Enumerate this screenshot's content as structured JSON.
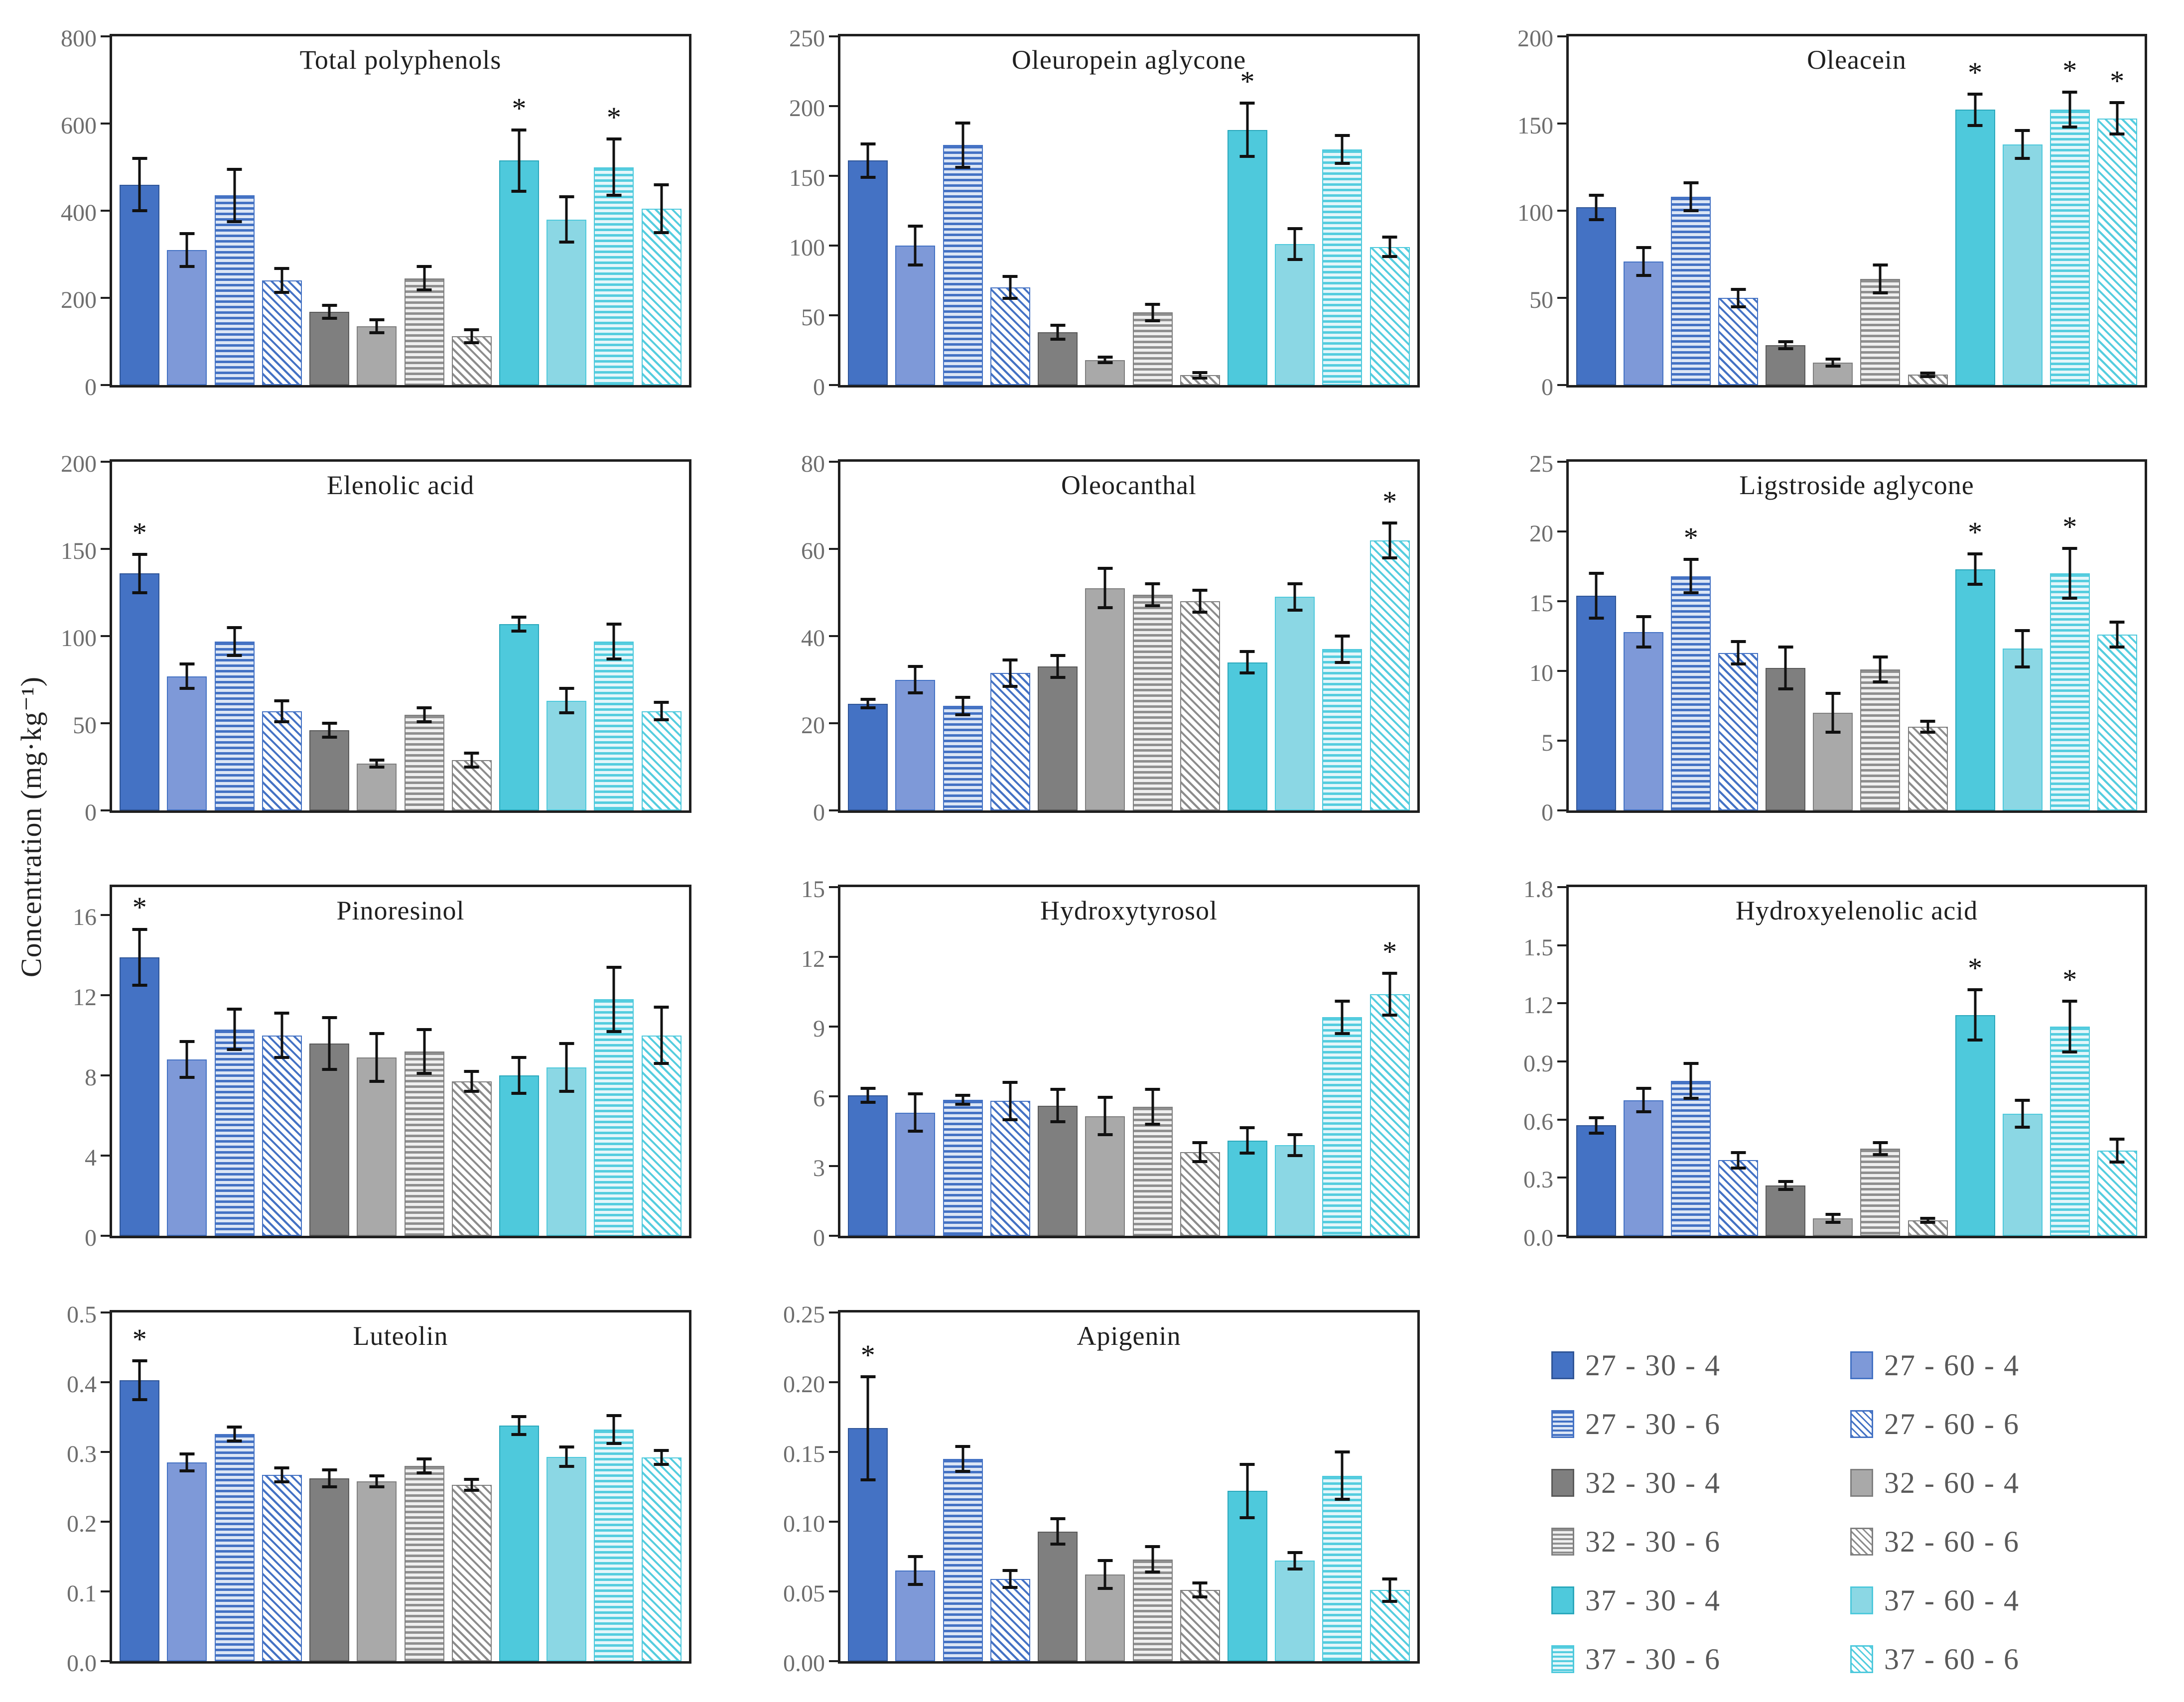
{
  "figure": {
    "type": "multi-panel bar figure",
    "panel_count": 11,
    "significance_marker": "*"
  },
  "series_styles": [
    {
      "label": "27 - 30 - 4",
      "pattern": "solid",
      "color": "#4472C4",
      "bg": "#4472C4",
      "edge": "#2F5597"
    },
    {
      "label": "27 - 60 - 4",
      "pattern": "solid",
      "color": "#7E99D8",
      "bg": "#7E99D8",
      "edge": "#4472C4"
    },
    {
      "label": "27 - 30 - 6",
      "pattern": "hstripe",
      "color": "#4472C4",
      "bg": "#DCE6F5",
      "edge": "#4472C4"
    },
    {
      "label": "27 - 60 - 6",
      "pattern": "diag",
      "color": "#4472C4",
      "bg": "#FFFFFF",
      "edge": "#4472C4"
    },
    {
      "label": "32 - 30 - 4",
      "pattern": "solid",
      "color": "#7F7F7F",
      "bg": "#7F7F7F",
      "edge": "#595959"
    },
    {
      "label": "32 - 60 - 4",
      "pattern": "solid",
      "color": "#A9A9A9",
      "bg": "#A9A9A9",
      "edge": "#7F7F7F"
    },
    {
      "label": "32 - 30 - 6",
      "pattern": "hstripe",
      "color": "#8F8F8F",
      "bg": "#EFEFEF",
      "edge": "#7F7F7F"
    },
    {
      "label": "32 - 60 - 6",
      "pattern": "diag",
      "color": "#8C8C8C",
      "bg": "#FFFFFF",
      "edge": "#7F7F7F"
    },
    {
      "label": "37 - 30 - 4",
      "pattern": "solid",
      "color": "#4EC9DC",
      "bg": "#4EC9DC",
      "edge": "#2AA8BC"
    },
    {
      "label": "37 - 60 - 4",
      "pattern": "solid",
      "color": "#8BD7E4",
      "bg": "#8BD7E4",
      "edge": "#4EC9DC"
    },
    {
      "label": "37 - 30 - 6",
      "pattern": "hstripe",
      "color": "#55CDDF",
      "bg": "#E5F6FA",
      "edge": "#4EC9DC"
    },
    {
      "label": "37 - 60 - 6",
      "pattern": "diag",
      "color": "#55CDDF",
      "bg": "#FFFFFF",
      "edge": "#4EC9DC"
    }
  ],
  "legend": {
    "columns": 2,
    "items": [
      "27 - 30 - 4",
      "27 - 60 - 4",
      "27 - 30 - 6",
      "27 - 60 - 6",
      "32 - 30 - 4",
      "32 - 60 - 4",
      "32 - 30 - 6",
      "32 - 60 - 6",
      "37 - 30 - 4",
      "37 - 60 - 4",
      "37 - 30 - 6",
      "37 - 60 - 6"
    ]
  },
  "chart_data": {
    "type": "bar",
    "ylabel": "Concentration (mg·kg⁻¹)",
    "categories": [
      "27 - 30 - 4",
      "27 - 60 - 4",
      "27 - 30 - 6",
      "27 - 60 - 6",
      "32 - 30 - 4",
      "32 - 60 - 4",
      "32 - 30 - 6",
      "32 - 60 - 6",
      "37 - 30 - 4",
      "37 - 60 - 4",
      "37 - 30 - 6",
      "37 - 60 - 6"
    ],
    "error_bars": true,
    "charts": [
      {
        "title": "Total polyphenols",
        "ylim": [
          0,
          800
        ],
        "yticks": [
          0,
          200,
          400,
          600,
          800
        ],
        "tick_decimals": 0,
        "values": [
          460,
          310,
          435,
          240,
          168,
          135,
          245,
          112,
          515,
          380,
          500,
          405
        ],
        "errors": [
          60,
          38,
          60,
          27,
          15,
          15,
          27,
          15,
          70,
          52,
          65,
          55
        ],
        "sig_indices": [
          8,
          10
        ]
      },
      {
        "title": "Oleuropein aglycone",
        "ylim": [
          0,
          250
        ],
        "yticks": [
          0,
          50,
          100,
          150,
          200,
          250
        ],
        "tick_decimals": 0,
        "values": [
          161,
          100,
          172,
          70,
          38,
          18,
          52,
          7,
          183,
          101,
          169,
          99
        ],
        "errors": [
          12,
          14,
          16,
          8,
          5,
          2,
          6,
          2,
          19,
          11,
          10,
          7
        ],
        "sig_indices": [
          8
        ]
      },
      {
        "title": "Oleacein",
        "ylim": [
          0,
          200
        ],
        "yticks": [
          0,
          50,
          100,
          150,
          200
        ],
        "tick_decimals": 0,
        "values": [
          102,
          71,
          108,
          50,
          23,
          13,
          61,
          6,
          158,
          138,
          158,
          153
        ],
        "errors": [
          7,
          8,
          8,
          5,
          2,
          2,
          8,
          1,
          9,
          8,
          10,
          9
        ],
        "sig_indices": [
          8,
          10,
          11
        ]
      },
      {
        "title": "Elenolic acid",
        "ylim": [
          0,
          200
        ],
        "yticks": [
          0,
          50,
          100,
          150,
          200
        ],
        "tick_decimals": 0,
        "values": [
          136,
          77,
          97,
          57,
          46,
          27,
          55,
          29,
          107,
          63,
          97,
          57
        ],
        "errors": [
          11,
          7,
          8,
          6,
          4,
          2,
          4,
          4,
          4,
          7,
          10,
          5
        ],
        "sig_indices": [
          0
        ]
      },
      {
        "title": "Oleocanthal",
        "ylim": [
          0,
          80
        ],
        "yticks": [
          0,
          20,
          40,
          60,
          80
        ],
        "tick_decimals": 0,
        "values": [
          24.5,
          30,
          24,
          31.5,
          33,
          51,
          49.5,
          48,
          34,
          49,
          37,
          62
        ],
        "errors": [
          1,
          3,
          2,
          3,
          2.5,
          4.5,
          2.5,
          2.5,
          2.5,
          3,
          3,
          4
        ],
        "sig_indices": [
          11
        ]
      },
      {
        "title": "Ligstroside aglycone",
        "ylim": [
          0,
          25
        ],
        "yticks": [
          0,
          5,
          10,
          15,
          20,
          25
        ],
        "tick_decimals": 0,
        "values": [
          15.4,
          12.8,
          16.8,
          11.3,
          10.2,
          7,
          10.1,
          6,
          17.3,
          11.6,
          17,
          12.6
        ],
        "errors": [
          1.6,
          1.1,
          1.2,
          0.8,
          1.5,
          1.4,
          0.9,
          0.4,
          1.1,
          1.3,
          1.8,
          0.9
        ],
        "sig_indices": [
          2,
          8,
          10
        ]
      },
      {
        "title": "Pinoresinol",
        "ylim": [
          0,
          17.4
        ],
        "yticks": [
          0,
          4,
          8,
          12,
          16
        ],
        "tick_decimals": 0,
        "values": [
          13.9,
          8.8,
          10.3,
          10,
          9.6,
          8.9,
          9.2,
          7.7,
          8,
          8.4,
          11.8,
          10
        ],
        "errors": [
          1.4,
          0.9,
          1,
          1.1,
          1.3,
          1.2,
          1.1,
          0.5,
          0.9,
          1.2,
          1.6,
          1.4
        ],
        "sig_indices": [
          0
        ]
      },
      {
        "title": "Hydroxytyrosol",
        "ylim": [
          0,
          15
        ],
        "yticks": [
          0,
          3,
          6,
          9,
          12,
          15
        ],
        "tick_decimals": 0,
        "values": [
          6.05,
          5.3,
          5.85,
          5.8,
          5.6,
          5.15,
          5.55,
          3.6,
          4.1,
          3.9,
          9.4,
          10.4
        ],
        "errors": [
          0.3,
          0.8,
          0.2,
          0.8,
          0.7,
          0.8,
          0.75,
          0.4,
          0.55,
          0.45,
          0.7,
          0.9
        ],
        "sig_indices": [
          11
        ]
      },
      {
        "title": "Hydroxyelenolic acid",
        "ylim": [
          0,
          1.8
        ],
        "yticks": [
          0,
          0.3,
          0.6,
          0.9,
          1.2,
          1.5,
          1.8
        ],
        "tick_decimals": 1,
        "values": [
          0.57,
          0.7,
          0.8,
          0.39,
          0.26,
          0.09,
          0.45,
          0.08,
          1.14,
          0.63,
          1.08,
          0.44
        ],
        "errors": [
          0.04,
          0.06,
          0.09,
          0.04,
          0.02,
          0.02,
          0.03,
          0.01,
          0.13,
          0.07,
          0.13,
          0.06
        ],
        "sig_indices": [
          8,
          10
        ]
      },
      {
        "title": "Luteolin",
        "ylim": [
          0,
          0.5
        ],
        "yticks": [
          0,
          0.1,
          0.2,
          0.3,
          0.4,
          0.5
        ],
        "tick_decimals": 1,
        "values": [
          0.403,
          0.285,
          0.326,
          0.267,
          0.262,
          0.258,
          0.28,
          0.253,
          0.338,
          0.293,
          0.332,
          0.292
        ],
        "errors": [
          0.028,
          0.012,
          0.01,
          0.01,
          0.012,
          0.008,
          0.01,
          0.008,
          0.013,
          0.014,
          0.02,
          0.01
        ],
        "sig_indices": [
          0
        ]
      },
      {
        "title": "Apigenin",
        "ylim": [
          0,
          0.25
        ],
        "yticks": [
          0,
          0.05,
          0.1,
          0.15,
          0.2,
          0.25
        ],
        "tick_decimals": 2,
        "values": [
          0.167,
          0.065,
          0.145,
          0.059,
          0.093,
          0.062,
          0.073,
          0.051,
          0.122,
          0.072,
          0.133,
          0.051
        ],
        "errors": [
          0.037,
          0.01,
          0.009,
          0.006,
          0.009,
          0.01,
          0.009,
          0.005,
          0.019,
          0.006,
          0.017,
          0.008
        ],
        "sig_indices": [
          0
        ]
      }
    ]
  }
}
